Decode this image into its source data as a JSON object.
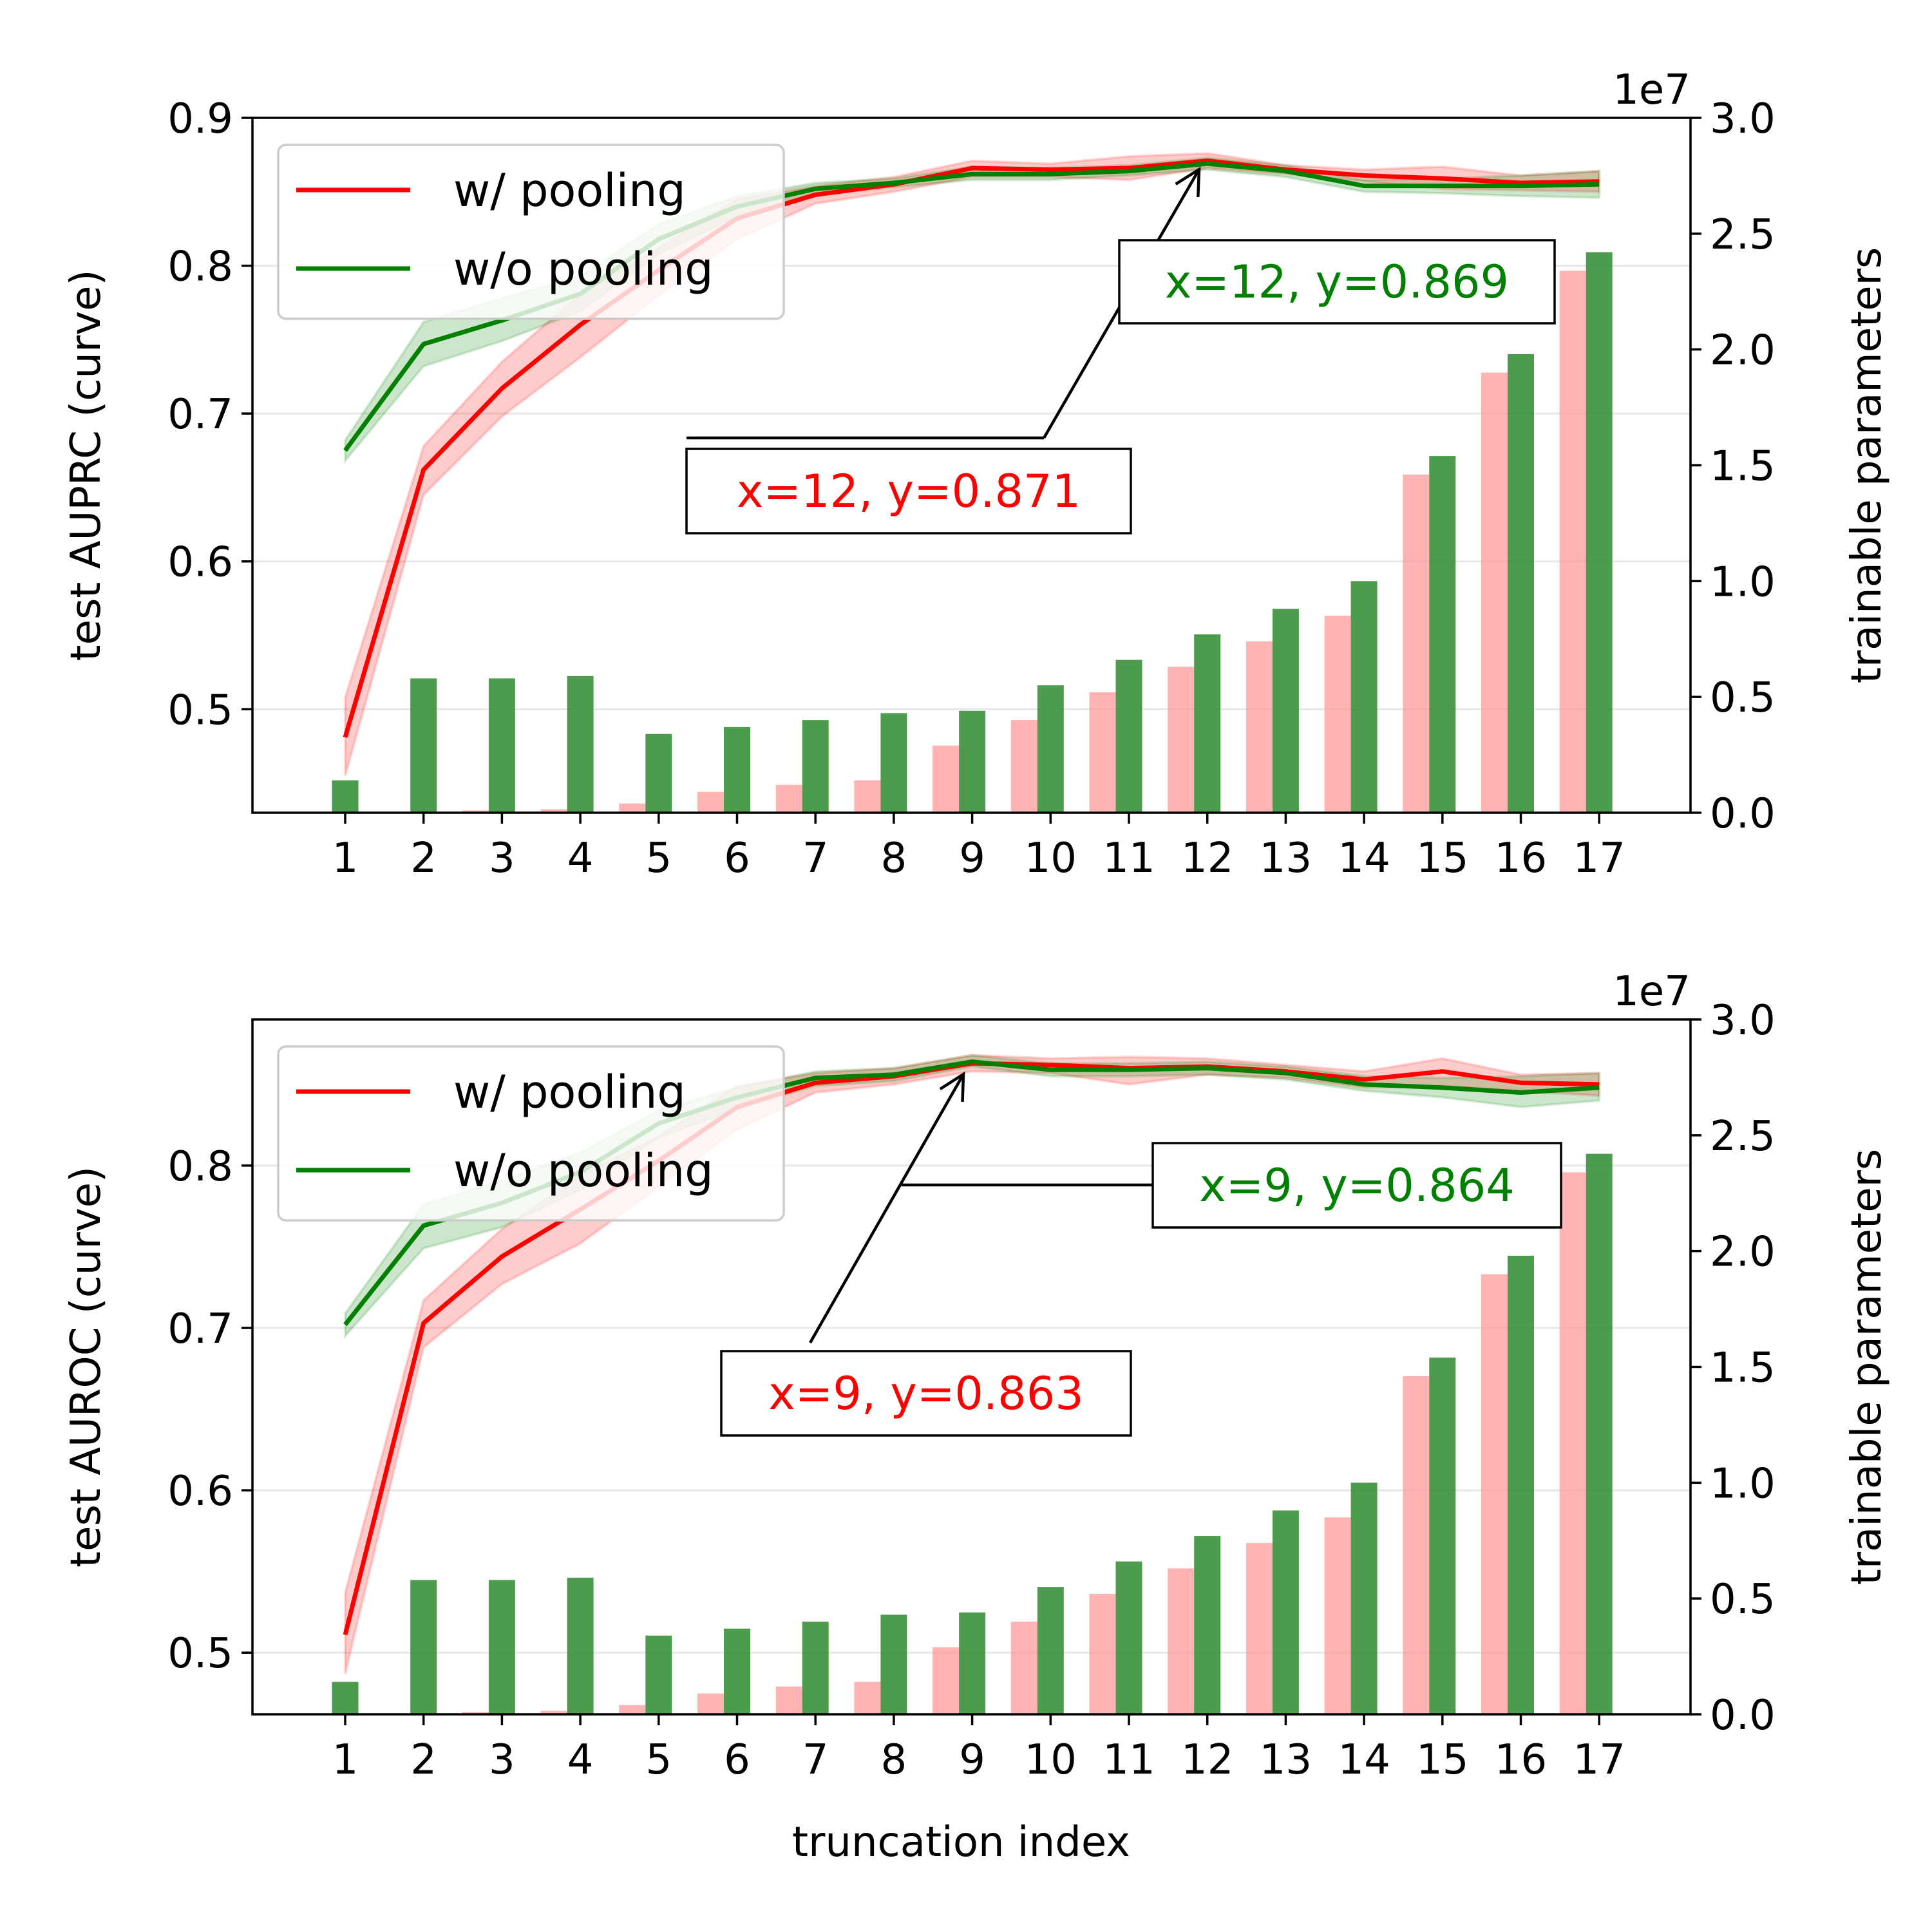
{
  "chart_data": [
    {
      "type": "line",
      "ylabel": "test AUPRC (curve)",
      "y2label": "trainable parameters",
      "y2_offset_text": "1e7",
      "xlabel": "",
      "x": [
        1,
        2,
        3,
        4,
        5,
        6,
        7,
        8,
        9,
        10,
        11,
        12,
        13,
        14,
        15,
        16,
        17
      ],
      "ylim": [
        0.43,
        0.9
      ],
      "yticks": [
        0.5,
        0.6,
        0.7,
        0.8,
        0.9
      ],
      "ytick_labels": [
        "0.5",
        "0.6",
        "0.7",
        "0.8",
        "0.9"
      ],
      "y2lim": [
        0,
        3.0
      ],
      "y2ticks": [
        0,
        0.5,
        1.0,
        1.5,
        2.0,
        2.5,
        3.0
      ],
      "y2tick_labels": [
        "0.0",
        "0.5",
        "1.0",
        "1.5",
        "2.0",
        "2.5",
        "3.0"
      ],
      "grid": true,
      "legend_position": "top-left",
      "series": [
        {
          "name": "w/ pooling",
          "color": "#ff0000",
          "values": [
            0.481,
            0.662,
            0.717,
            0.76,
            0.797,
            0.832,
            0.848,
            0.855,
            0.866,
            0.865,
            0.866,
            0.871,
            0.865,
            0.861,
            0.859,
            0.856,
            0.857
          ],
          "lower": [
            0.455,
            0.645,
            0.698,
            0.738,
            0.78,
            0.818,
            0.842,
            0.85,
            0.86,
            0.86,
            0.858,
            0.866,
            0.862,
            0.857,
            0.852,
            0.851,
            0.85
          ],
          "upper": [
            0.508,
            0.678,
            0.735,
            0.781,
            0.812,
            0.845,
            0.854,
            0.86,
            0.871,
            0.869,
            0.874,
            0.876,
            0.868,
            0.865,
            0.867,
            0.861,
            0.864
          ],
          "params": [
            0,
            0.003,
            0.01,
            0.015,
            0.04,
            0.09,
            0.12,
            0.14,
            0.29,
            0.4,
            0.52,
            0.63,
            0.74,
            0.85,
            1.46,
            1.9,
            2.34
          ]
        },
        {
          "name": "w/o pooling",
          "color": "#008000",
          "values": [
            0.675,
            0.747,
            0.763,
            0.781,
            0.818,
            0.84,
            0.852,
            0.856,
            0.862,
            0.862,
            0.864,
            0.869,
            0.864,
            0.854,
            0.854,
            0.854,
            0.855
          ],
          "lower": [
            0.668,
            0.732,
            0.749,
            0.769,
            0.808,
            0.833,
            0.848,
            0.853,
            0.858,
            0.858,
            0.861,
            0.865,
            0.86,
            0.85,
            0.849,
            0.847,
            0.846
          ],
          "upper": [
            0.682,
            0.762,
            0.778,
            0.793,
            0.828,
            0.847,
            0.856,
            0.859,
            0.867,
            0.866,
            0.868,
            0.873,
            0.868,
            0.858,
            0.859,
            0.861,
            0.864
          ],
          "params": [
            0.14,
            0.58,
            0.58,
            0.59,
            0.34,
            0.37,
            0.4,
            0.43,
            0.44,
            0.55,
            0.66,
            0.77,
            0.88,
            1.0,
            1.54,
            1.98,
            2.42
          ]
        }
      ],
      "annotations": [
        {
          "text": "x=12, y=0.869",
          "series": "w/o pooling",
          "x": 12,
          "y": 0.869
        },
        {
          "text": "x=12, y=0.871",
          "series": "w/ pooling",
          "x": 12,
          "y": 0.871
        }
      ]
    },
    {
      "type": "line",
      "ylabel": "test AUROC (curve)",
      "y2label": "trainable parameters",
      "y2_offset_text": "1e7",
      "xlabel": "truncation index",
      "x": [
        1,
        2,
        3,
        4,
        5,
        6,
        7,
        8,
        9,
        10,
        11,
        12,
        13,
        14,
        15,
        16,
        17
      ],
      "ylim": [
        0.462,
        0.89
      ],
      "yticks": [
        0.5,
        0.6,
        0.7,
        0.8
      ],
      "ytick_labels": [
        "0.5",
        "0.6",
        "0.7",
        "0.8"
      ],
      "y2lim": [
        0,
        3.0
      ],
      "y2ticks": [
        0,
        0.5,
        1.0,
        1.5,
        2.0,
        2.5,
        3.0
      ],
      "y2tick_labels": [
        "0.0",
        "0.5",
        "1.0",
        "1.5",
        "2.0",
        "2.5",
        "3.0"
      ],
      "grid": true,
      "legend_position": "top-left",
      "series": [
        {
          "name": "w/ pooling",
          "color": "#ff0000",
          "values": [
            0.511,
            0.703,
            0.744,
            0.773,
            0.803,
            0.836,
            0.851,
            0.855,
            0.863,
            0.862,
            0.86,
            0.861,
            0.858,
            0.853,
            0.858,
            0.851,
            0.85
          ],
          "lower": [
            0.487,
            0.688,
            0.727,
            0.752,
            0.787,
            0.822,
            0.845,
            0.85,
            0.858,
            0.857,
            0.85,
            0.856,
            0.854,
            0.848,
            0.849,
            0.846,
            0.843
          ],
          "upper": [
            0.537,
            0.717,
            0.761,
            0.794,
            0.818,
            0.849,
            0.857,
            0.86,
            0.868,
            0.866,
            0.867,
            0.866,
            0.862,
            0.858,
            0.866,
            0.856,
            0.857
          ],
          "params": [
            0,
            0.003,
            0.01,
            0.015,
            0.04,
            0.09,
            0.12,
            0.14,
            0.29,
            0.4,
            0.52,
            0.63,
            0.74,
            0.85,
            1.46,
            1.9,
            2.34
          ]
        },
        {
          "name": "w/o pooling",
          "color": "#008000",
          "values": [
            0.702,
            0.763,
            0.777,
            0.796,
            0.826,
            0.842,
            0.854,
            0.856,
            0.864,
            0.859,
            0.859,
            0.86,
            0.857,
            0.85,
            0.848,
            0.845,
            0.848
          ],
          "lower": [
            0.695,
            0.749,
            0.762,
            0.785,
            0.817,
            0.835,
            0.849,
            0.852,
            0.861,
            0.855,
            0.855,
            0.856,
            0.853,
            0.846,
            0.842,
            0.836,
            0.84
          ],
          "upper": [
            0.709,
            0.776,
            0.791,
            0.808,
            0.834,
            0.848,
            0.858,
            0.86,
            0.868,
            0.863,
            0.863,
            0.864,
            0.861,
            0.855,
            0.854,
            0.855,
            0.857
          ],
          "params": [
            0.14,
            0.58,
            0.58,
            0.59,
            0.34,
            0.37,
            0.4,
            0.43,
            0.44,
            0.55,
            0.66,
            0.77,
            0.88,
            1.0,
            1.54,
            1.98,
            2.42
          ]
        }
      ],
      "annotations": [
        {
          "text": "x=9, y=0.864",
          "series": "w/o pooling",
          "x": 9,
          "y": 0.864
        },
        {
          "text": "x=9, y=0.863",
          "series": "w/ pooling",
          "x": 9,
          "y": 0.863
        }
      ]
    }
  ]
}
